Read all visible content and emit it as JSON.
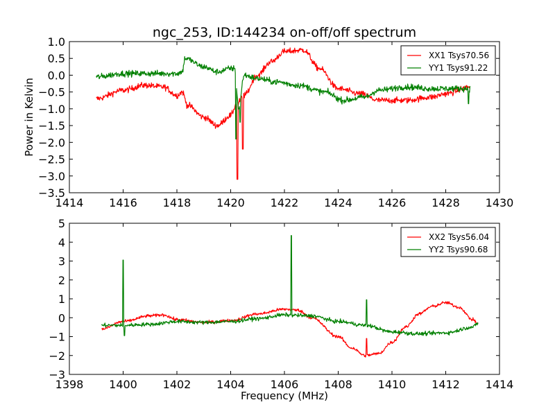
{
  "chart_data": [
    {
      "type": "line",
      "title": "ngc_253, ID:144234 on-off/off spectrum",
      "xlabel": "",
      "ylabel": "Power in Kelvin",
      "xlim": [
        1414,
        1430
      ],
      "ylim": [
        -3.5,
        1.0
      ],
      "xticks": [
        "1414",
        "1416",
        "1418",
        "1420",
        "1422",
        "1424",
        "1426",
        "1428",
        "1430"
      ],
      "yticks": [
        "1.0",
        "0.5",
        "0.0",
        "−0.5",
        "−1.0",
        "−1.5",
        "−2.0",
        "−2.5",
        "−3.0",
        "−3.5"
      ],
      "ytick_values": [
        1.0,
        0.5,
        0.0,
        -0.5,
        -1.0,
        -1.5,
        -2.0,
        -2.5,
        -3.0,
        -3.5
      ],
      "xtick_values": [
        1414,
        1416,
        1418,
        1420,
        1422,
        1424,
        1426,
        1428,
        1430
      ],
      "grid": false,
      "legend": "top-right",
      "series": [
        {
          "name": "XX1 Tsys70.56",
          "color": "#ff0000",
          "x_range": [
            1415.0,
            1428.9
          ],
          "noise": 0.09,
          "anchors": [
            [
              1415.0,
              -0.7
            ],
            [
              1416.0,
              -0.45
            ],
            [
              1416.8,
              -0.3
            ],
            [
              1417.5,
              -0.35
            ],
            [
              1418.0,
              -0.6
            ],
            [
              1418.2,
              -0.5
            ],
            [
              1418.4,
              -0.9
            ],
            [
              1419.0,
              -1.25
            ],
            [
              1419.5,
              -1.5
            ],
            [
              1420.0,
              -1.2
            ],
            [
              1420.2,
              -0.9
            ],
            [
              1420.5,
              -0.6
            ],
            [
              1421.0,
              0.0
            ],
            [
              1421.5,
              0.4
            ],
            [
              1422.0,
              0.7
            ],
            [
              1422.7,
              0.75
            ],
            [
              1423.3,
              0.2
            ],
            [
              1424.0,
              -0.4
            ],
            [
              1424.8,
              -0.55
            ],
            [
              1425.5,
              -0.75
            ],
            [
              1426.5,
              -0.75
            ],
            [
              1427.5,
              -0.65
            ],
            [
              1428.0,
              -0.55
            ],
            [
              1428.9,
              -0.35
            ]
          ],
          "spikes": [
            [
              1420.25,
              -3.1
            ],
            [
              1420.45,
              -2.2
            ]
          ]
        },
        {
          "name": "YY1 Tsys91.22",
          "color": "#008000",
          "x_range": [
            1415.0,
            1428.9
          ],
          "noise": 0.09,
          "anchors": [
            [
              1415.0,
              -0.05
            ],
            [
              1416.0,
              0.05
            ],
            [
              1417.0,
              0.05
            ],
            [
              1418.0,
              0.05
            ],
            [
              1418.2,
              0.1
            ],
            [
              1418.3,
              0.5
            ],
            [
              1419.0,
              0.25
            ],
            [
              1419.5,
              0.1
            ],
            [
              1420.0,
              0.2
            ],
            [
              1420.15,
              0.2
            ],
            [
              1420.3,
              -1.0
            ],
            [
              1420.5,
              0.0
            ],
            [
              1421.0,
              -0.1
            ],
            [
              1421.7,
              -0.2
            ],
            [
              1422.5,
              -0.3
            ],
            [
              1423.5,
              -0.5
            ],
            [
              1424.2,
              -0.75
            ],
            [
              1425.0,
              -0.65
            ],
            [
              1425.5,
              -0.45
            ],
            [
              1426.5,
              -0.35
            ],
            [
              1427.5,
              -0.4
            ],
            [
              1428.9,
              -0.4
            ]
          ],
          "spikes": [
            [
              1420.2,
              -1.9
            ],
            [
              1420.35,
              -1.4
            ],
            [
              1428.85,
              -0.85
            ]
          ]
        }
      ]
    },
    {
      "type": "line",
      "title": "",
      "xlabel": "Frequency (MHz)",
      "ylabel": "",
      "xlim": [
        1398,
        1414
      ],
      "ylim": [
        -3,
        5
      ],
      "xticks": [
        "1398",
        "1400",
        "1402",
        "1404",
        "1406",
        "1408",
        "1410",
        "1412",
        "1414"
      ],
      "yticks": [
        "5",
        "4",
        "3",
        "2",
        "1",
        "0",
        "−1",
        "−2",
        "−3"
      ],
      "ytick_values": [
        5,
        4,
        3,
        2,
        1,
        0,
        -1,
        -2,
        -3
      ],
      "xtick_values": [
        1398,
        1400,
        1402,
        1404,
        1406,
        1408,
        1410,
        1412,
        1414
      ],
      "grid": false,
      "legend": "top-right",
      "series": [
        {
          "name": "XX2 Tsys56.04",
          "color": "#ff0000",
          "x_range": [
            1399.2,
            1413.2
          ],
          "noise": 0.08,
          "anchors": [
            [
              1399.2,
              -0.6
            ],
            [
              1400.0,
              -0.2
            ],
            [
              1401.0,
              0.1
            ],
            [
              1401.5,
              0.15
            ],
            [
              1402.0,
              -0.1
            ],
            [
              1403.0,
              -0.25
            ],
            [
              1404.0,
              -0.15
            ],
            [
              1405.0,
              0.2
            ],
            [
              1406.0,
              0.45
            ],
            [
              1406.5,
              0.4
            ],
            [
              1407.0,
              0.0
            ],
            [
              1408.0,
              -1.0
            ],
            [
              1408.5,
              -1.6
            ],
            [
              1409.0,
              -2.0
            ],
            [
              1409.5,
              -1.9
            ],
            [
              1410.0,
              -1.3
            ],
            [
              1410.5,
              -0.5
            ],
            [
              1411.0,
              0.2
            ],
            [
              1411.5,
              0.6
            ],
            [
              1412.0,
              0.8
            ],
            [
              1412.5,
              0.55
            ],
            [
              1413.0,
              -0.1
            ],
            [
              1413.2,
              -0.3
            ]
          ],
          "spikes": [
            [
              1409.05,
              -1.1
            ]
          ]
        },
        {
          "name": "YY2 Tsys90.68",
          "color": "#008000",
          "x_range": [
            1399.2,
            1413.2
          ],
          "noise": 0.1,
          "anchors": [
            [
              1399.2,
              -0.4
            ],
            [
              1400.0,
              -0.4
            ],
            [
              1401.0,
              -0.35
            ],
            [
              1402.0,
              -0.2
            ],
            [
              1403.0,
              -0.25
            ],
            [
              1404.0,
              -0.2
            ],
            [
              1405.0,
              -0.05
            ],
            [
              1406.0,
              0.15
            ],
            [
              1407.0,
              0.1
            ],
            [
              1408.0,
              -0.2
            ],
            [
              1409.0,
              -0.4
            ],
            [
              1410.0,
              -0.75
            ],
            [
              1411.0,
              -0.85
            ],
            [
              1412.0,
              -0.8
            ],
            [
              1413.0,
              -0.5
            ],
            [
              1413.2,
              -0.3
            ]
          ],
          "spikes": [
            [
              1400.0,
              3.05
            ],
            [
              1400.05,
              -0.95
            ],
            [
              1406.25,
              4.35
            ],
            [
              1409.05,
              0.95
            ]
          ]
        }
      ]
    }
  ]
}
